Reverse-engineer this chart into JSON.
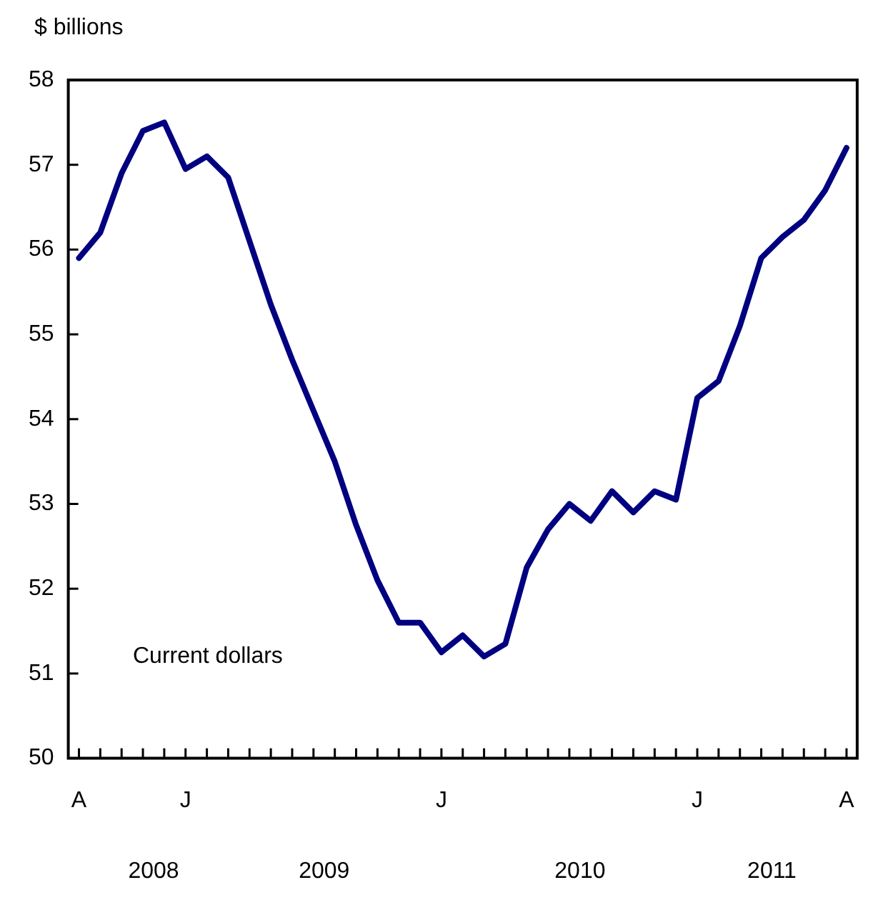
{
  "chart_data": {
    "type": "line",
    "ylabel": "$ billions",
    "categories": [
      "A",
      null,
      null,
      null,
      null,
      "J",
      null,
      null,
      null,
      null,
      null,
      null,
      null,
      null,
      null,
      null,
      null,
      "J",
      null,
      null,
      null,
      null,
      null,
      null,
      null,
      null,
      null,
      null,
      null,
      "J",
      null,
      null,
      null,
      null,
      null,
      null,
      "A"
    ],
    "series": [
      {
        "name": "Current dollars",
        "color": "#000080",
        "values": [
          55.9,
          56.2,
          56.9,
          57.4,
          57.5,
          56.95,
          57.1,
          56.85,
          56.1,
          55.35,
          54.7,
          54.1,
          53.5,
          52.75,
          52.1,
          51.6,
          51.6,
          51.25,
          51.45,
          51.2,
          51.35,
          52.25,
          52.7,
          53.0,
          52.8,
          53.15,
          52.9,
          53.15,
          53.05,
          54.25,
          54.45,
          55.1,
          55.9,
          56.15,
          56.35,
          56.7,
          57.2
        ]
      }
    ],
    "ylim": [
      50,
      58
    ],
    "yticks": [
      50,
      51,
      52,
      53,
      54,
      55,
      56,
      57,
      58
    ],
    "annotations": [
      "2008",
      "2009",
      "2010",
      "2011"
    ],
    "grid": false,
    "legend": false,
    "marker": "none",
    "line_style": "solid"
  }
}
